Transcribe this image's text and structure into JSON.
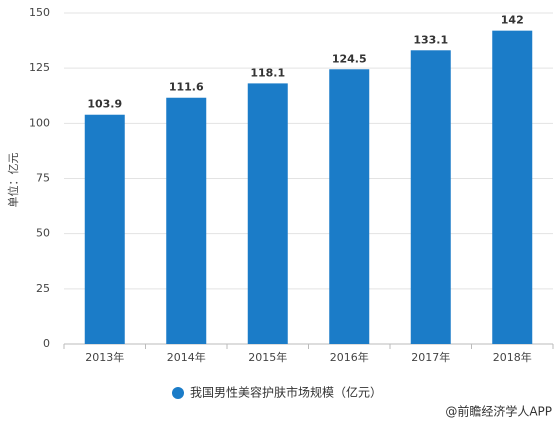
{
  "chart_data": {
    "type": "bar",
    "y_label": "单位：亿元",
    "categories": [
      "2013年",
      "2014年",
      "2015年",
      "2016年",
      "2017年",
      "2018年"
    ],
    "series": [
      {
        "name": "我国男性美容护肤市场规模（亿元）",
        "color": "#1b7cc8",
        "values": [
          103.9,
          111.6,
          118.1,
          124.5,
          133.1,
          142
        ]
      }
    ],
    "ylim": [
      0,
      150
    ],
    "yticks": [
      0,
      25,
      50,
      75,
      100,
      125,
      150
    ],
    "grid": true,
    "legend": "bottom",
    "source": "@前瞻经济学人APP"
  }
}
